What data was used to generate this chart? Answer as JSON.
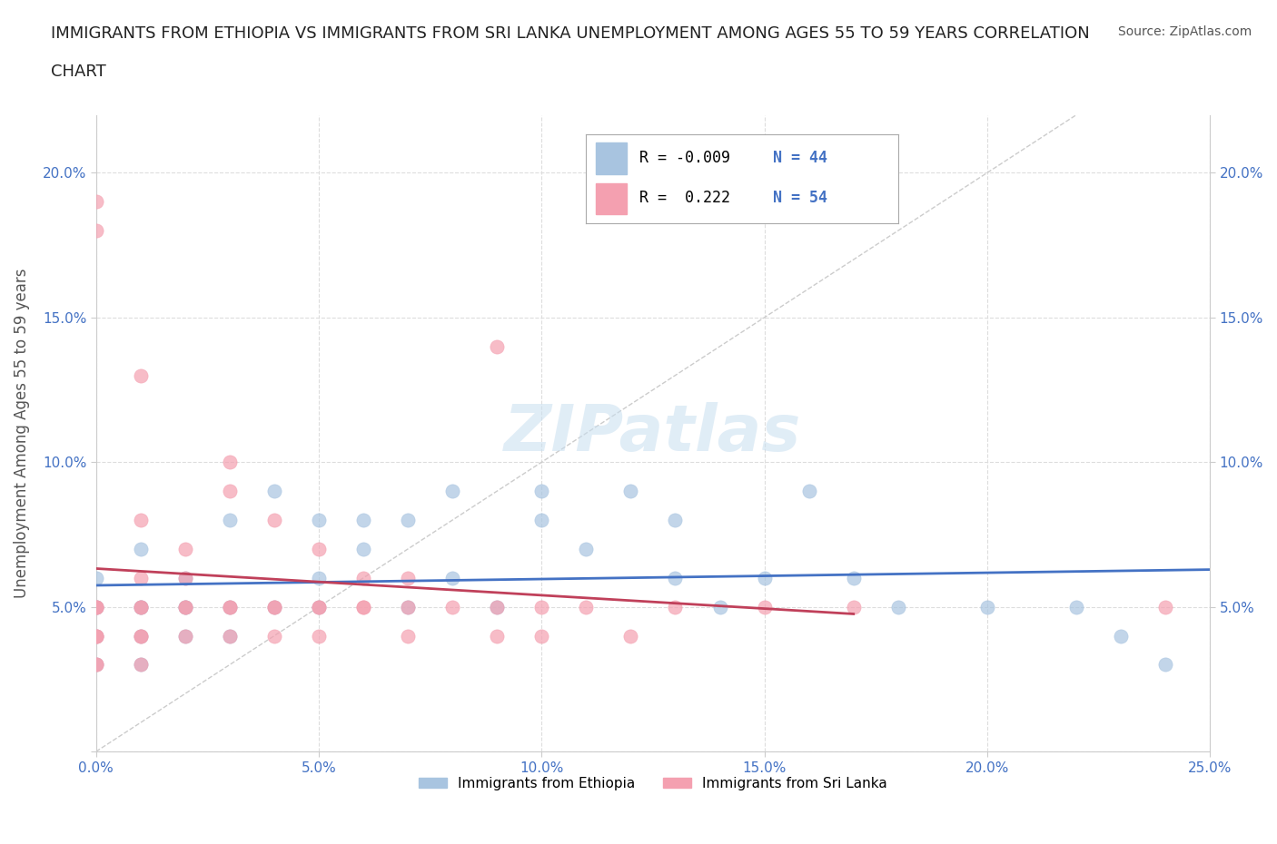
{
  "title_line1": "IMMIGRANTS FROM ETHIOPIA VS IMMIGRANTS FROM SRI LANKA UNEMPLOYMENT AMONG AGES 55 TO 59 YEARS CORRELATION",
  "title_line2": "CHART",
  "source": "Source: ZipAtlas.com",
  "xlabel": "",
  "ylabel": "Unemployment Among Ages 55 to 59 years",
  "xlim": [
    0,
    0.25
  ],
  "ylim": [
    0,
    0.22
  ],
  "xticks": [
    0.0,
    0.05,
    0.1,
    0.15,
    0.2,
    0.25
  ],
  "yticks": [
    0.0,
    0.05,
    0.1,
    0.15,
    0.2
  ],
  "xticklabels": [
    "0.0%",
    "5.0%",
    "10.0%",
    "15.0%",
    "20.0%",
    "25.0%"
  ],
  "yticklabels": [
    "",
    "5.0%",
    "10.0%",
    "15.0%",
    "20.0%"
  ],
  "watermark": "ZIPatlas",
  "ethiopia_color": "#a8c4e0",
  "srilanka_color": "#f4a0b0",
  "trendline_ethiopia_color": "#4472c4",
  "trendline_srilanka_color": "#c0405a",
  "R_ethiopia": -0.009,
  "N_ethiopia": 44,
  "R_srilanka": 0.222,
  "N_srilanka": 54,
  "ethiopia_x": [
    0.0,
    0.0,
    0.0,
    0.0,
    0.0,
    0.01,
    0.01,
    0.01,
    0.01,
    0.01,
    0.02,
    0.02,
    0.02,
    0.02,
    0.03,
    0.03,
    0.03,
    0.04,
    0.04,
    0.05,
    0.05,
    0.05,
    0.06,
    0.06,
    0.07,
    0.07,
    0.08,
    0.08,
    0.09,
    0.1,
    0.1,
    0.11,
    0.12,
    0.13,
    0.13,
    0.14,
    0.15,
    0.16,
    0.17,
    0.18,
    0.2,
    0.22,
    0.23,
    0.24
  ],
  "ethiopia_y": [
    0.05,
    0.05,
    0.04,
    0.03,
    0.06,
    0.05,
    0.05,
    0.04,
    0.03,
    0.07,
    0.05,
    0.05,
    0.04,
    0.06,
    0.05,
    0.04,
    0.08,
    0.09,
    0.05,
    0.05,
    0.08,
    0.06,
    0.08,
    0.07,
    0.08,
    0.05,
    0.09,
    0.06,
    0.05,
    0.09,
    0.08,
    0.07,
    0.09,
    0.08,
    0.06,
    0.05,
    0.06,
    0.09,
    0.06,
    0.05,
    0.05,
    0.05,
    0.04,
    0.03
  ],
  "srilanka_x": [
    0.0,
    0.0,
    0.0,
    0.0,
    0.0,
    0.0,
    0.0,
    0.0,
    0.0,
    0.0,
    0.01,
    0.01,
    0.01,
    0.01,
    0.01,
    0.01,
    0.01,
    0.01,
    0.02,
    0.02,
    0.02,
    0.02,
    0.02,
    0.03,
    0.03,
    0.03,
    0.03,
    0.03,
    0.04,
    0.04,
    0.04,
    0.04,
    0.05,
    0.05,
    0.05,
    0.05,
    0.06,
    0.06,
    0.06,
    0.07,
    0.07,
    0.07,
    0.08,
    0.09,
    0.09,
    0.09,
    0.1,
    0.1,
    0.11,
    0.12,
    0.13,
    0.15,
    0.17,
    0.24
  ],
  "srilanka_y": [
    0.05,
    0.05,
    0.05,
    0.04,
    0.04,
    0.04,
    0.03,
    0.03,
    0.18,
    0.19,
    0.05,
    0.05,
    0.04,
    0.04,
    0.03,
    0.06,
    0.08,
    0.13,
    0.05,
    0.05,
    0.04,
    0.06,
    0.07,
    0.05,
    0.05,
    0.04,
    0.09,
    0.1,
    0.05,
    0.05,
    0.04,
    0.08,
    0.05,
    0.05,
    0.04,
    0.07,
    0.05,
    0.05,
    0.06,
    0.05,
    0.04,
    0.06,
    0.05,
    0.05,
    0.04,
    0.14,
    0.05,
    0.04,
    0.05,
    0.04,
    0.05,
    0.05,
    0.05,
    0.05
  ],
  "background_color": "#ffffff",
  "grid_color": "#dddddd",
  "title_color": "#222222",
  "axis_label_color": "#555555",
  "tick_color": "#4472c4",
  "source_color": "#555555",
  "legend_ethiopia": "Immigrants from Ethiopia",
  "legend_srilanka": "Immigrants from Sri Lanka"
}
